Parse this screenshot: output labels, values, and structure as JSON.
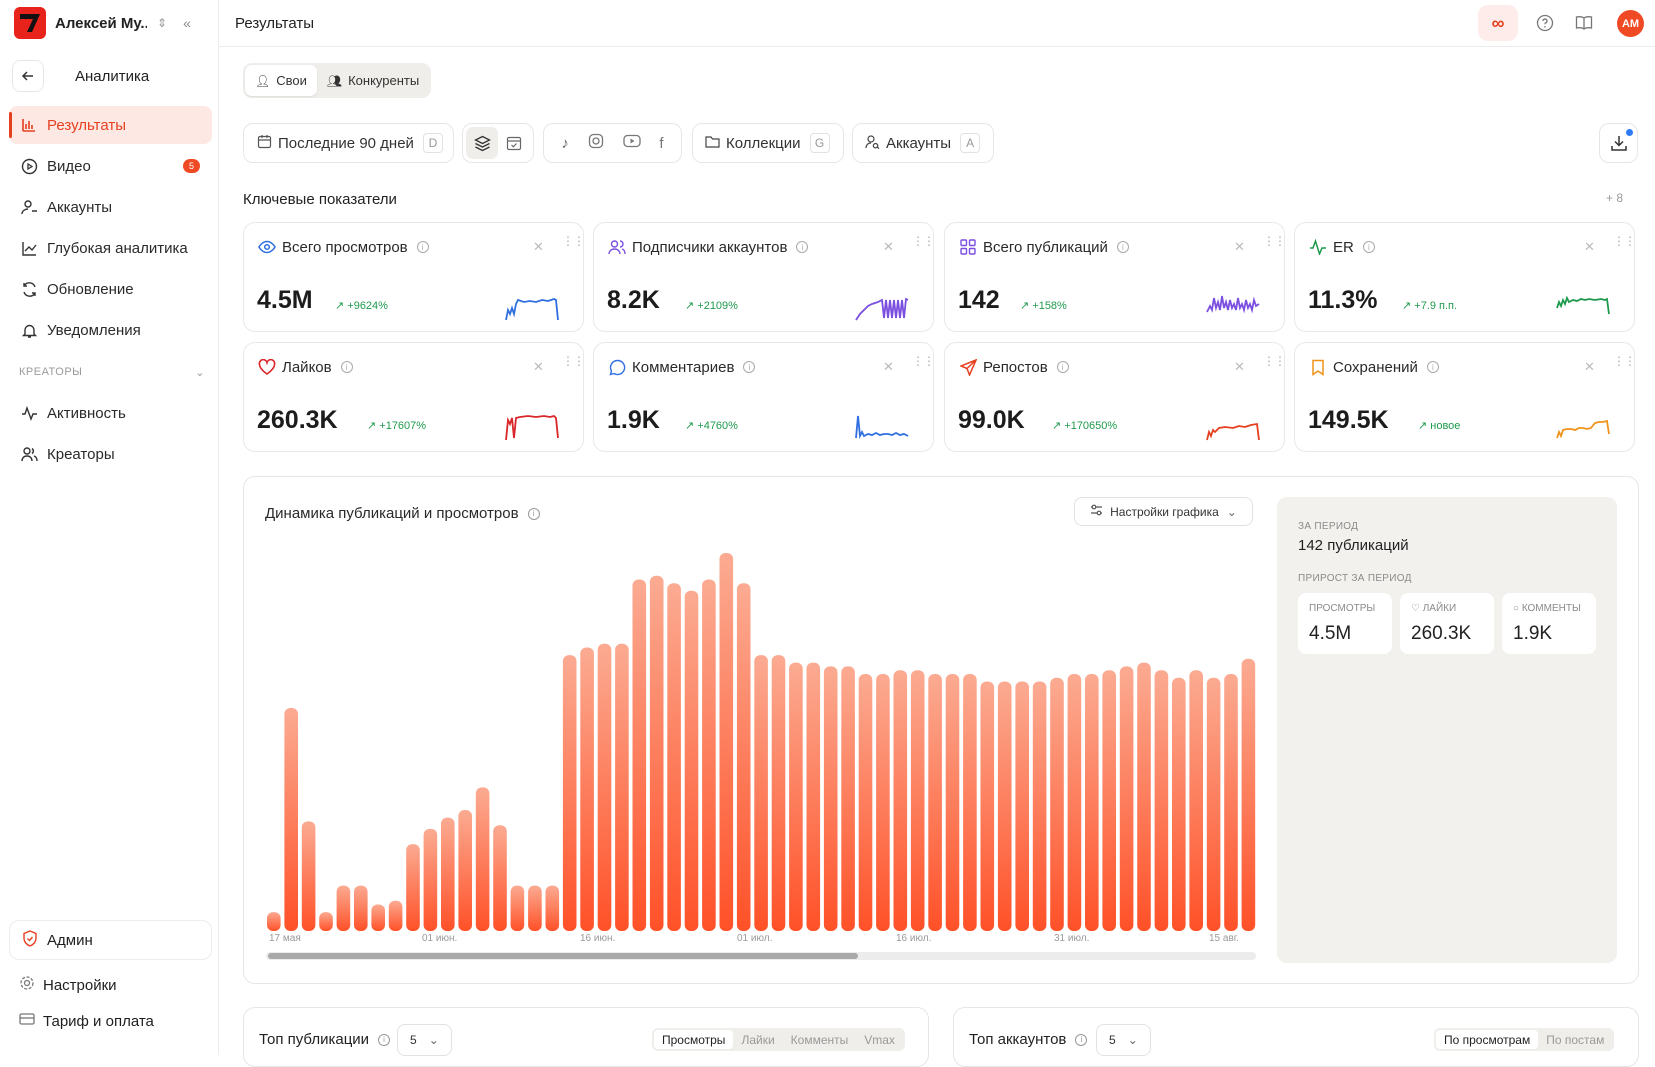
{
  "brand": {
    "name": "Алексей Му..."
  },
  "sidebar": {
    "back_title": "Аналитика",
    "items": [
      {
        "label": "Результаты"
      },
      {
        "label": "Видео",
        "badge": "5"
      },
      {
        "label": "Аккаунты"
      },
      {
        "label": "Глубокая аналитика"
      },
      {
        "label": "Обновление"
      },
      {
        "label": "Уведомления"
      }
    ],
    "section": "КРЕАТОРЫ",
    "creator_items": [
      {
        "label": "Активность"
      },
      {
        "label": "Креаторы"
      }
    ],
    "admin": "Админ",
    "settings": "Настройки",
    "billing": "Тариф и оплата"
  },
  "topbar": {
    "title": "Результаты",
    "avatar": "AM"
  },
  "scope_tabs": [
    "Свои",
    "Конкуренты"
  ],
  "filters": {
    "period": "Последние 90 дней",
    "period_key": "D",
    "collections": "Коллекции",
    "collections_key": "G",
    "accounts": "Аккаунты",
    "accounts_key": "A"
  },
  "kpi": {
    "title": "Ключевые показатели",
    "add_label": "+ 8",
    "cards": [
      {
        "title": "Всего просмотров",
        "value": "4.5M",
        "delta": "↗ +9624%",
        "color": "#2f6fe0",
        "icon": "eye-icon"
      },
      {
        "title": "Подписчики аккаунтов",
        "value": "8.2K",
        "delta": "↗ +2109%",
        "color": "#7b4fe0",
        "icon": "users-icon"
      },
      {
        "title": "Всего публикаций",
        "value": "142",
        "delta": "↗ +158%",
        "color": "#7b4fe0",
        "icon": "grid-icon"
      },
      {
        "title": "ER",
        "value": "11.3%",
        "delta": "↗ +7.9 п.п.",
        "color": "#1f9a4d",
        "icon": "pulse-icon"
      },
      {
        "title": "Лайков",
        "value": "260.3K",
        "delta": "↗ +17607%",
        "color": "#d9262a",
        "icon": "heart-icon"
      },
      {
        "title": "Комментариев",
        "value": "1.9K",
        "delta": "↗ +4760%",
        "color": "#2f6fe0",
        "icon": "comment-icon"
      },
      {
        "title": "Репостов",
        "value": "99.0K",
        "delta": "↗ +170650%",
        "color": "#e5401f",
        "icon": "send-icon"
      },
      {
        "title": "Сохранений",
        "value": "149.5K",
        "delta": "↗ новое",
        "color": "#f0921a",
        "icon": "bookmark-icon"
      }
    ]
  },
  "chart": {
    "title": "Динамика публикаций и просмотров",
    "settings_label": "Настройки графика",
    "side": {
      "period_label": "ЗА ПЕРИОД",
      "pubs": "142 публикаций",
      "growth_label": "ПРИРОСТ ЗА ПЕРИОД",
      "views_label": "ПРОСМОТРЫ",
      "views": "4.5M",
      "likes_label": "♡ ЛАЙКИ",
      "likes": "260.3K",
      "comments_label": "○ КОММЕНТЫ",
      "comments": "1.9K"
    }
  },
  "chart_data": {
    "type": "bar",
    "x_ticks": [
      "17 мая",
      "01 июн.",
      "16 июн.",
      "01 июл.",
      "16 июл.",
      "31 июл.",
      "15 авг."
    ],
    "values": [
      5,
      59,
      29,
      5,
      12,
      12,
      7,
      8,
      23,
      27,
      30,
      32,
      38,
      28,
      12,
      12,
      12,
      73,
      75,
      76,
      76,
      93,
      94,
      92,
      90,
      93,
      100,
      92,
      73,
      73,
      71,
      71,
      70,
      70,
      68,
      68,
      69,
      69,
      68,
      68,
      68,
      66,
      66,
      66,
      66,
      67,
      68,
      68,
      69,
      70,
      71,
      69,
      67,
      69,
      67,
      68,
      72
    ]
  },
  "top_pubs": {
    "title": "Топ публикации",
    "count": "5",
    "tabs": [
      "Просмотры",
      "Лайки",
      "Комменты",
      "Vmax"
    ]
  },
  "top_accounts": {
    "title": "Топ аккаунтов",
    "count": "5",
    "tabs": [
      "По просмотрам",
      "По постам"
    ]
  }
}
